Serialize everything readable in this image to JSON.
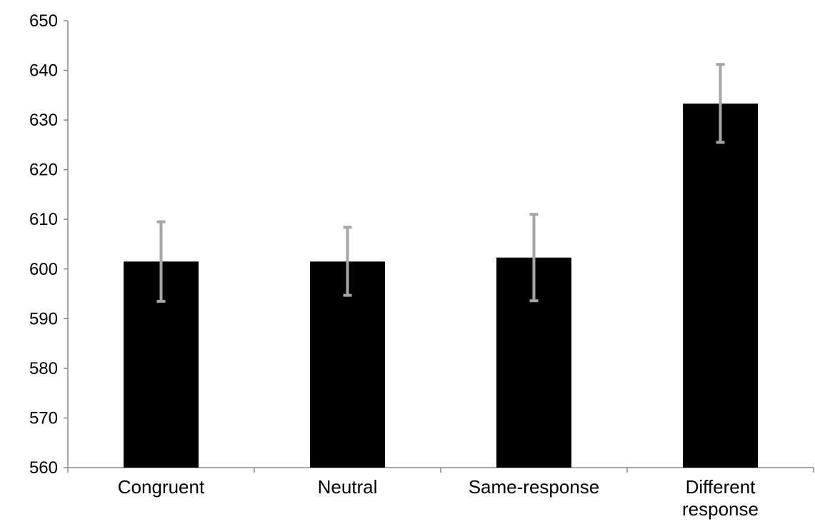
{
  "chart_data": {
    "type": "bar",
    "title": "",
    "xlabel": "",
    "ylabel": "",
    "categories": [
      [
        "Congruent"
      ],
      [
        "Neutral"
      ],
      [
        "Same-response"
      ],
      [
        "Different",
        "response"
      ]
    ],
    "series": [
      {
        "values": [
          601.5,
          601.5,
          602.3,
          633.3
        ],
        "error_low": [
          593.5,
          594.7,
          593.6,
          625.5
        ],
        "error_high": [
          609.5,
          608.4,
          611.0,
          641.2
        ]
      }
    ],
    "ylim": [
      560,
      650
    ],
    "yticks": [
      560,
      570,
      580,
      590,
      600,
      610,
      620,
      630,
      640,
      650
    ],
    "grid": false,
    "legend": "none",
    "colors": {
      "bar": "#000000",
      "error_bar": "#a6a6a6",
      "axis": "#888888"
    }
  }
}
